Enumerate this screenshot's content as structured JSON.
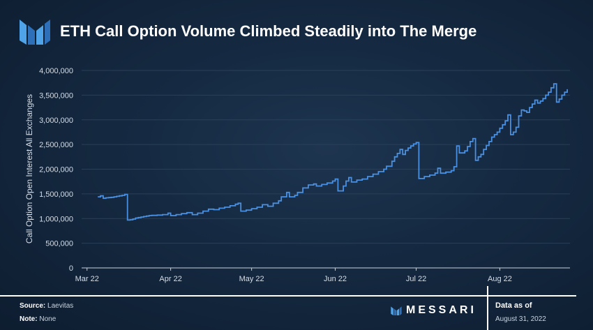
{
  "header": {
    "title": "ETH Call Option Volume Climbed Steadily into The Merge"
  },
  "footer": {
    "source_label": "Source:",
    "source_value": "Laevitas",
    "note_label": "Note:",
    "note_value": "None",
    "brand": "MESSARI",
    "data_as_of_label": "Data as of",
    "data_as_of_date": "August 31, 2022"
  },
  "colors": {
    "line": "#4a90e2",
    "background": "#152a42",
    "grid": "#2a4058",
    "text": "#ffffff"
  },
  "chart_data": {
    "type": "line",
    "title": "ETH Call Option Volume Climbed Steadily into The Merge",
    "ylabel": "Call Option Open Interest All Exchanges",
    "xlabel": "",
    "ylim": [
      0,
      4000000
    ],
    "y_ticks": [
      0,
      500000,
      1000000,
      1500000,
      2000000,
      2500000,
      3000000,
      3500000,
      4000000
    ],
    "y_tick_labels": [
      "0",
      "500,000",
      "1,000,000",
      "1,500,000",
      "2,000,000",
      "2,500,000",
      "3,000,000",
      "3,500,000",
      "4,000,000"
    ],
    "x_ticks": [
      "2022-03-01",
      "2022-04-01",
      "2022-05-01",
      "2022-06-01",
      "2022-07-01",
      "2022-08-01"
    ],
    "x_tick_labels": [
      "Mar 22",
      "Apr 22",
      "May 22",
      "Jun 22",
      "Jul 22",
      "Aug 22"
    ],
    "xlim": [
      "2022-02-27",
      "2022-08-20"
    ],
    "grid": true,
    "series": [
      {
        "points": [
          [
            "2022-03-05",
            1440000
          ],
          [
            "2022-03-06",
            1460000
          ],
          [
            "2022-03-07",
            1410000
          ],
          [
            "2022-03-08",
            1420000
          ],
          [
            "2022-03-09",
            1425000
          ],
          [
            "2022-03-10",
            1430000
          ],
          [
            "2022-03-11",
            1440000
          ],
          [
            "2022-03-12",
            1450000
          ],
          [
            "2022-03-13",
            1460000
          ],
          [
            "2022-03-14",
            1470000
          ],
          [
            "2022-03-15",
            1490000
          ],
          [
            "2022-03-16",
            970000
          ],
          [
            "2022-03-17",
            975000
          ],
          [
            "2022-03-18",
            990000
          ],
          [
            "2022-03-19",
            1010000
          ],
          [
            "2022-03-20",
            1020000
          ],
          [
            "2022-03-21",
            1030000
          ],
          [
            "2022-03-22",
            1040000
          ],
          [
            "2022-03-23",
            1050000
          ],
          [
            "2022-03-24",
            1060000
          ],
          [
            "2022-03-25",
            1065000
          ],
          [
            "2022-03-27",
            1070000
          ],
          [
            "2022-03-29",
            1080000
          ],
          [
            "2022-03-31",
            1110000
          ],
          [
            "2022-04-01",
            1060000
          ],
          [
            "2022-04-03",
            1080000
          ],
          [
            "2022-04-05",
            1100000
          ],
          [
            "2022-04-07",
            1120000
          ],
          [
            "2022-04-09",
            1080000
          ],
          [
            "2022-04-11",
            1110000
          ],
          [
            "2022-04-13",
            1150000
          ],
          [
            "2022-04-15",
            1190000
          ],
          [
            "2022-04-17",
            1180000
          ],
          [
            "2022-04-19",
            1210000
          ],
          [
            "2022-04-21",
            1230000
          ],
          [
            "2022-04-23",
            1260000
          ],
          [
            "2022-04-25",
            1290000
          ],
          [
            "2022-04-26",
            1310000
          ],
          [
            "2022-04-27",
            1150000
          ],
          [
            "2022-04-29",
            1170000
          ],
          [
            "2022-05-01",
            1200000
          ],
          [
            "2022-05-03",
            1230000
          ],
          [
            "2022-05-05",
            1280000
          ],
          [
            "2022-05-07",
            1250000
          ],
          [
            "2022-05-09",
            1310000
          ],
          [
            "2022-05-11",
            1360000
          ],
          [
            "2022-05-12",
            1440000
          ],
          [
            "2022-05-14",
            1530000
          ],
          [
            "2022-05-15",
            1440000
          ],
          [
            "2022-05-17",
            1470000
          ],
          [
            "2022-05-18",
            1530000
          ],
          [
            "2022-05-20",
            1620000
          ],
          [
            "2022-05-22",
            1680000
          ],
          [
            "2022-05-24",
            1700000
          ],
          [
            "2022-05-25",
            1660000
          ],
          [
            "2022-05-27",
            1690000
          ],
          [
            "2022-05-29",
            1720000
          ],
          [
            "2022-05-31",
            1760000
          ],
          [
            "2022-06-01",
            1800000
          ],
          [
            "2022-06-02",
            1560000
          ],
          [
            "2022-06-04",
            1660000
          ],
          [
            "2022-06-05",
            1760000
          ],
          [
            "2022-06-06",
            1830000
          ],
          [
            "2022-06-07",
            1740000
          ],
          [
            "2022-06-09",
            1780000
          ],
          [
            "2022-06-11",
            1800000
          ],
          [
            "2022-06-13",
            1850000
          ],
          [
            "2022-06-15",
            1900000
          ],
          [
            "2022-06-17",
            1950000
          ],
          [
            "2022-06-19",
            2000000
          ],
          [
            "2022-06-20",
            2060000
          ],
          [
            "2022-06-22",
            2160000
          ],
          [
            "2022-06-23",
            2250000
          ],
          [
            "2022-06-24",
            2320000
          ],
          [
            "2022-06-25",
            2400000
          ],
          [
            "2022-06-26",
            2300000
          ],
          [
            "2022-06-27",
            2380000
          ],
          [
            "2022-06-28",
            2430000
          ],
          [
            "2022-06-29",
            2470000
          ],
          [
            "2022-06-30",
            2510000
          ],
          [
            "2022-07-01",
            2540000
          ],
          [
            "2022-07-02",
            1810000
          ],
          [
            "2022-07-04",
            1850000
          ],
          [
            "2022-07-06",
            1880000
          ],
          [
            "2022-07-08",
            1920000
          ],
          [
            "2022-07-09",
            2020000
          ],
          [
            "2022-07-10",
            1920000
          ],
          [
            "2022-07-12",
            1940000
          ],
          [
            "2022-07-14",
            1970000
          ],
          [
            "2022-07-15",
            2050000
          ],
          [
            "2022-07-16",
            2470000
          ],
          [
            "2022-07-17",
            2330000
          ],
          [
            "2022-07-19",
            2370000
          ],
          [
            "2022-07-20",
            2460000
          ],
          [
            "2022-07-21",
            2560000
          ],
          [
            "2022-07-22",
            2620000
          ],
          [
            "2022-07-23",
            2180000
          ],
          [
            "2022-07-24",
            2250000
          ],
          [
            "2022-07-25",
            2300000
          ],
          [
            "2022-07-26",
            2400000
          ],
          [
            "2022-07-27",
            2480000
          ],
          [
            "2022-07-28",
            2560000
          ],
          [
            "2022-07-29",
            2650000
          ],
          [
            "2022-07-30",
            2700000
          ],
          [
            "2022-07-31",
            2750000
          ],
          [
            "2022-08-01",
            2830000
          ],
          [
            "2022-08-02",
            2900000
          ],
          [
            "2022-08-03",
            2980000
          ],
          [
            "2022-08-04",
            3100000
          ],
          [
            "2022-08-05",
            2700000
          ],
          [
            "2022-08-06",
            2750000
          ],
          [
            "2022-08-07",
            2850000
          ],
          [
            "2022-08-08",
            3080000
          ],
          [
            "2022-08-09",
            3200000
          ],
          [
            "2022-08-10",
            3180000
          ],
          [
            "2022-08-11",
            3150000
          ],
          [
            "2022-08-12",
            3250000
          ],
          [
            "2022-08-13",
            3320000
          ],
          [
            "2022-08-14",
            3400000
          ],
          [
            "2022-08-15",
            3340000
          ],
          [
            "2022-08-16",
            3380000
          ],
          [
            "2022-08-17",
            3430000
          ],
          [
            "2022-08-18",
            3500000
          ],
          [
            "2022-08-19",
            3560000
          ],
          [
            "2022-08-20",
            3650000
          ],
          [
            "2022-08-21",
            3730000
          ],
          [
            "2022-08-22",
            3360000
          ],
          [
            "2022-08-23",
            3420000
          ],
          [
            "2022-08-24",
            3500000
          ],
          [
            "2022-08-25",
            3560000
          ],
          [
            "2022-08-26",
            3620000
          ]
        ]
      }
    ]
  }
}
